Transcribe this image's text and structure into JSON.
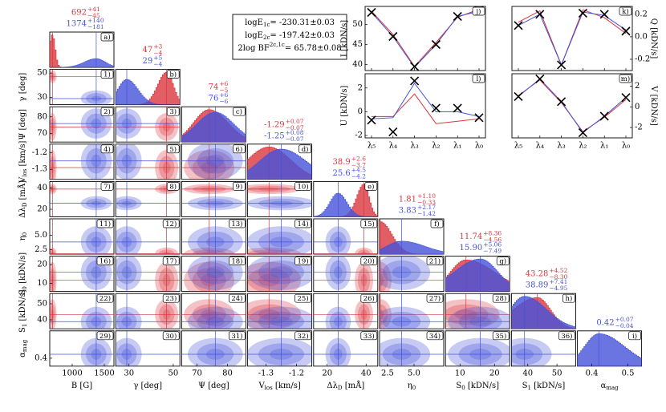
{
  "chart_data": {
    "type": "corner",
    "params": [
      {
        "label": "B",
        "unit": " [G]",
        "xlim": [
          650,
          1650
        ],
        "xticks": [
          1000,
          1500
        ],
        "estimates": [
          {
            "color": "#d9363e",
            "values": [
              692,
              41,
              -45
            ],
            "value_labels": [
              "692",
              "+41",
              "−45"
            ]
          },
          {
            "color": "#4552d9",
            "values": [
              1374,
              140,
              -181
            ],
            "value_labels": [
              "1374",
              "+140",
              "−181"
            ]
          }
        ]
      },
      {
        "label": "γ",
        "unit": " [deg]",
        "xlim": [
          24,
          53
        ],
        "xticks": [
          30,
          50
        ],
        "yticks": [
          30,
          50
        ],
        "estimates": [
          {
            "color": "#d9363e",
            "values": [
              47,
              3,
              -4
            ],
            "value_labels": [
              "47",
              "+3",
              "−4"
            ]
          },
          {
            "color": "#4552d9",
            "values": [
              29,
              5,
              -4
            ],
            "value_labels": [
              "29",
              "+5",
              "−4"
            ]
          }
        ]
      },
      {
        "label": "Ψ",
        "unit": " [deg]",
        "xlim": [
          65,
          86
        ],
        "xticks": [
          70,
          80
        ],
        "yticks": [
          70,
          80
        ],
        "estimates": [
          {
            "color": "#d9363e",
            "values": [
              74,
              6,
              -5
            ],
            "value_labels": [
              "74",
              "+6",
              "−5"
            ]
          },
          {
            "color": "#4552d9",
            "values": [
              76,
              6,
              -6
            ],
            "value_labels": [
              "76",
              "+6",
              "−6"
            ]
          }
        ]
      },
      {
        "label": "V",
        "sub": "los",
        "unit": " [km/s]",
        "xlim": [
          -1.36,
          -1.15
        ],
        "xticks": [
          -1.3,
          -1.2
        ],
        "yticks": [
          -1.3,
          -1.2
        ],
        "estimates": [
          {
            "color": "#d9363e",
            "values": [
              -1.29,
              0.07,
              -0.07
            ],
            "value_labels": [
              "-1.29",
              "+0.07",
              "−0.07"
            ]
          },
          {
            "color": "#4552d9",
            "values": [
              -1.25,
              0.08,
              -0.07
            ],
            "value_labels": [
              "-1.25",
              "+0.08",
              "−0.07"
            ]
          }
        ]
      },
      {
        "label": "Δλ",
        "sub": "D",
        "unit": " [mÅ]",
        "xlim": [
          13,
          46
        ],
        "xticks": [
          20,
          40
        ],
        "yticks": [
          20,
          40
        ],
        "estimates": [
          {
            "color": "#d9363e",
            "values": [
              38.9,
              2.6,
              -3.7
            ],
            "value_labels": [
              "38.9",
              "+2.6",
              "−3.7"
            ]
          },
          {
            "color": "#4552d9",
            "values": [
              25.6,
              4.5,
              -4.2
            ],
            "value_labels": [
              "25.6",
              "+4.5",
              "−4.2"
            ]
          }
        ]
      },
      {
        "label": "η",
        "sub": "0",
        "xlim": [
          1.75,
          7.8
        ],
        "xticks": [
          2.5,
          {
            "value": 5,
            "label": "5.0"
          }
        ],
        "yticks": [
          2.5,
          {
            "value": 5,
            "label": "5.0"
          }
        ],
        "estimates": [
          {
            "color": "#d9363e",
            "values": [
              1.81,
              1.1,
              -0.33
            ],
            "value_labels": [
              "1.81",
              "+1.10",
              "−0.33"
            ]
          },
          {
            "color": "#4552d9",
            "values": [
              3.83,
              2.17,
              -1.42
            ],
            "value_labels": [
              "3.83",
              "+2.17",
              "−1.42"
            ]
          }
        ]
      },
      {
        "label": "S",
        "sub": "0",
        "unit": " [kDN/s]",
        "xlim": [
          5.8,
          24.4
        ],
        "xticks": [
          10,
          20
        ],
        "yticks": [
          10,
          20
        ],
        "estimates": [
          {
            "color": "#d9363e",
            "values": [
              11.74,
              8.36,
              -4.56
            ],
            "value_labels": [
              "11.74",
              "+8.36",
              "−4.56"
            ]
          },
          {
            "color": "#4552d9",
            "values": [
              15.9,
              5.06,
              -7.49
            ],
            "value_labels": [
              "15.90",
              "+5.06",
              "−7.49"
            ]
          }
        ]
      },
      {
        "label": "S",
        "sub": "1",
        "unit": " [kDN/s]",
        "xlim": [
          34.4,
          56.4
        ],
        "xticks": [
          40,
          50
        ],
        "yticks": [
          40,
          50
        ],
        "estimates": [
          {
            "color": "#d9363e",
            "values": [
              43.28,
              4.52,
              -8.3
            ],
            "value_labels": [
              "43.28",
              "+4.52",
              "−8.30"
            ]
          },
          {
            "color": "#4552d9",
            "values": [
              38.89,
              7.41,
              -4.95
            ],
            "value_labels": [
              "38.89",
              "+7.41",
              "−4.95"
            ]
          }
        ]
      },
      {
        "label": "α",
        "sub": "mag",
        "xlim": [
          0.36,
          0.538
        ],
        "xticks": [
          0.4,
          0.5
        ],
        "yticks": [
          0.4
        ],
        "estimates": [
          {
            "color": "#4552d9",
            "values": [
              0.42,
              0.07,
              -0.04
            ],
            "value_labels": [
              "0.42",
              "+0.07",
              "−0.04"
            ]
          }
        ]
      }
    ],
    "panel_labels": [
      [
        "a)"
      ],
      [
        "1)",
        "b)"
      ],
      [
        "2)",
        "3)",
        "c)"
      ],
      [
        "4)",
        "5)",
        "6)",
        "d)"
      ],
      [
        "7)",
        "8)",
        "9)",
        "10)",
        "e)"
      ],
      [
        "11)",
        "12)",
        "13)",
        "14)",
        "15)",
        "f)"
      ],
      [
        "16)",
        "17)",
        "18)",
        "19)",
        "20)",
        "21)",
        "g)"
      ],
      [
        "22)",
        "23)",
        "24)",
        "25)",
        "26)",
        "27)",
        "28)",
        "h)"
      ],
      [
        "29)",
        "30)",
        "31)",
        "32)",
        "33)",
        "34)",
        "35)",
        "36)",
        "i)"
      ]
    ],
    "evidence": [
      {
        "main": "logE",
        "script": "1c",
        "script_pos": "sub",
        "rest": "= -230.31±0.03"
      },
      {
        "main": "logE",
        "script": "2c",
        "script_pos": "sub",
        "rest": "= -197.42±0.03"
      },
      {
        "main": "2log BF",
        "script": "2c,1c",
        "script_pos": "sup",
        "rest": "= 65.78±0.08"
      }
    ],
    "stokes": {
      "x": [
        "λ₅",
        "λ₄",
        "λ₃",
        "λ₂",
        "λ₁",
        "λ₀"
      ],
      "panels": [
        {
          "label": "j)",
          "ylabel": "I",
          "unit": " [kDN/s]",
          "side": "left",
          "ylim": [
            38.5,
            54.5
          ],
          "yticks": [
            40,
            45,
            50
          ],
          "observed": [
            53,
            47,
            39.5,
            45,
            52,
            53.5
          ],
          "series": [
            {
              "color": "#d9363e",
              "values": [
                53.3,
                47.5,
                39.5,
                45.5,
                51.8,
                53.8
              ]
            },
            {
              "color": "#4552d9",
              "values": [
                53,
                47,
                39.3,
                45,
                52,
                53.3
              ]
            }
          ]
        },
        {
          "label": "k)",
          "ylabel": "Q",
          "unit": " [kDN/s]",
          "side": "right",
          "ylim": [
            -0.3,
            0.27
          ],
          "yticks": [
            -0.2,
            {
              "value": 0,
              "label": "0.0"
            },
            0.2
          ],
          "observed": [
            0.1,
            0.2,
            -0.25,
            0.21,
            0.2,
            0.05
          ],
          "series": [
            {
              "color": "#d9363e",
              "values": [
                0.13,
                0.23,
                -0.25,
                0.24,
                0.17,
                0.03
              ]
            },
            {
              "color": "#4552d9",
              "values": [
                0.1,
                0.2,
                -0.25,
                0.22,
                0.19,
                0.06
              ]
            }
          ]
        },
        {
          "label": "l)",
          "ylabel": "U",
          "unit": " [kDN/s]",
          "side": "left",
          "ylim": [
            -2.2,
            3.2
          ],
          "yticks": [
            -2,
            0,
            2
          ],
          "observed": [
            -0.7,
            -1.7,
            2.6,
            0.3,
            0.3,
            -0.5
          ],
          "series": [
            {
              "color": "#d9363e",
              "values": [
                -0.4,
                -0.4,
                1.5,
                -1.0,
                -0.8,
                -0.6
              ]
            },
            {
              "color": "#4552d9",
              "values": [
                -0.6,
                -0.5,
                2.4,
                0,
                0,
                -0.4
              ]
            }
          ]
        },
        {
          "label": "m)",
          "ylabel": "V",
          "unit": " [kDN/s]",
          "side": "right",
          "ylim": [
            -3,
            3.2
          ],
          "yticks": [
            -2,
            0,
            2
          ],
          "observed": [
            1,
            2.7,
            0.5,
            -2.5,
            -0.9,
            0.9
          ],
          "series": [
            {
              "color": "#d9363e",
              "values": [
                1.1,
                2.6,
                0.4,
                -2.4,
                -1.0,
                0.7
              ]
            },
            {
              "color": "#4552d9",
              "values": [
                1,
                2.7,
                0.5,
                -2.5,
                -0.9,
                0.9
              ]
            }
          ]
        }
      ]
    }
  }
}
